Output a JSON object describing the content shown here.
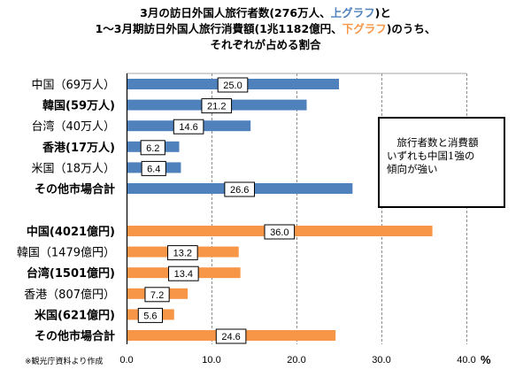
{
  "title": {
    "line1_pre": "3月の訪日外国人旅行者数(276万人、",
    "line1_hl": "上グラフ",
    "line1_post": ")と",
    "line2_pre": "1～3月期訪日外国人旅行消費額(1兆1182億円、",
    "line2_hl": "下グラフ",
    "line2_post": ")のうち、",
    "line3": "それぞれが占める割合"
  },
  "note": {
    "line1": "　旅行者数と消費額",
    "line2": "いずれも中国1強の",
    "line3": "傾向が強い"
  },
  "source": "※観光庁資料より作成",
  "colors": {
    "visitors": "#4F81BD",
    "spending": "#F79646"
  },
  "chart_data": {
    "type": "bar",
    "orientation": "horizontal",
    "title": "3月の訪日外国人旅行者数(276万人、上グラフ)と1～3月期訪日外国人旅行消費額(1兆1182億円、下グラフ)のうち、それぞれが占める割合",
    "xlabel": "%",
    "xlim": [
      0,
      40
    ],
    "xticks": [
      "0.0",
      "10.0",
      "20.0",
      "30.0",
      "40.0"
    ],
    "grid": "vertical-dashed",
    "series": [
      {
        "name": "旅行者数",
        "color": "#4F81BD",
        "categories": [
          "中国（69万人）",
          "韓国(59万人)",
          "台湾（40万人）",
          "香港(17万人)",
          "米国（18万人）",
          "その他市場合計"
        ],
        "bold": [
          false,
          true,
          false,
          true,
          false,
          true
        ],
        "values": [
          25.0,
          21.2,
          14.6,
          6.2,
          6.4,
          26.6
        ]
      },
      {
        "name": "消費額",
        "color": "#F79646",
        "categories": [
          "中国(4021億円)",
          "韓国（1479億円）",
          "台湾(1501億円)",
          "香港（807億円）",
          "米国(621億円)",
          "その他市場合計"
        ],
        "bold": [
          true,
          false,
          true,
          false,
          true,
          true
        ],
        "values": [
          36.0,
          13.2,
          13.4,
          7.2,
          5.6,
          24.6
        ]
      }
    ]
  }
}
